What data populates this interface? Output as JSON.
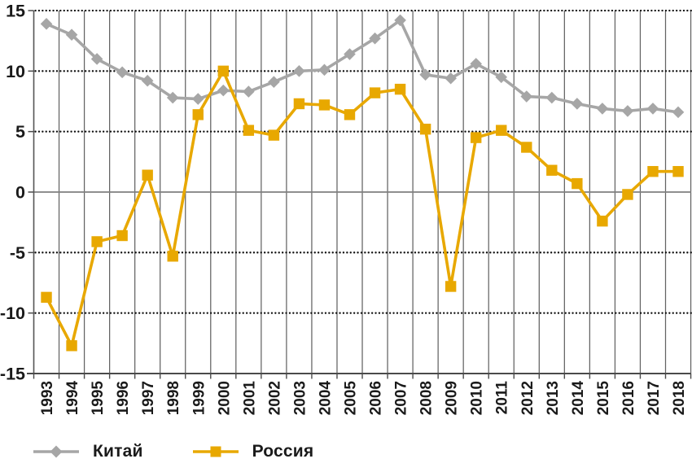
{
  "chart_data": {
    "type": "line",
    "x": [
      "1993",
      "1994",
      "1995",
      "1996",
      "1997",
      "1998",
      "1999",
      "2000",
      "2001",
      "2002",
      "2003",
      "2004",
      "2005",
      "2006",
      "2007",
      "2008",
      "2009",
      "2010",
      "2011",
      "2012",
      "2013",
      "2014",
      "2015",
      "2016",
      "2017",
      "2018"
    ],
    "series": [
      {
        "key": "china",
        "name": "Китай",
        "color": "#A6A6A6",
        "marker": "diamond",
        "values": [
          13.9,
          13.0,
          11.0,
          9.9,
          9.2,
          7.8,
          7.7,
          8.4,
          8.3,
          9.1,
          10.0,
          10.1,
          11.4,
          12.7,
          14.2,
          9.7,
          9.4,
          10.6,
          9.5,
          7.9,
          7.8,
          7.3,
          6.9,
          6.7,
          6.9,
          6.6
        ]
      },
      {
        "key": "russia",
        "name": "Россия",
        "color": "#E8A800",
        "marker": "square",
        "values": [
          -8.7,
          -12.7,
          -4.1,
          -3.6,
          1.4,
          -5.3,
          6.4,
          10.0,
          5.1,
          4.7,
          7.3,
          7.2,
          6.4,
          8.2,
          8.5,
          5.2,
          -7.8,
          4.5,
          5.1,
          3.7,
          1.8,
          0.7,
          -2.4,
          -0.2,
          1.7,
          1.7
        ]
      }
    ],
    "ylim": [
      -15,
      15
    ],
    "y_ticks": [
      15,
      10,
      5,
      0,
      -5,
      -10,
      -15
    ],
    "grid": {
      "vertical": "solid",
      "horizontal": "dotted",
      "zero_line": "solid"
    },
    "legend_position": "bottom-left"
  }
}
